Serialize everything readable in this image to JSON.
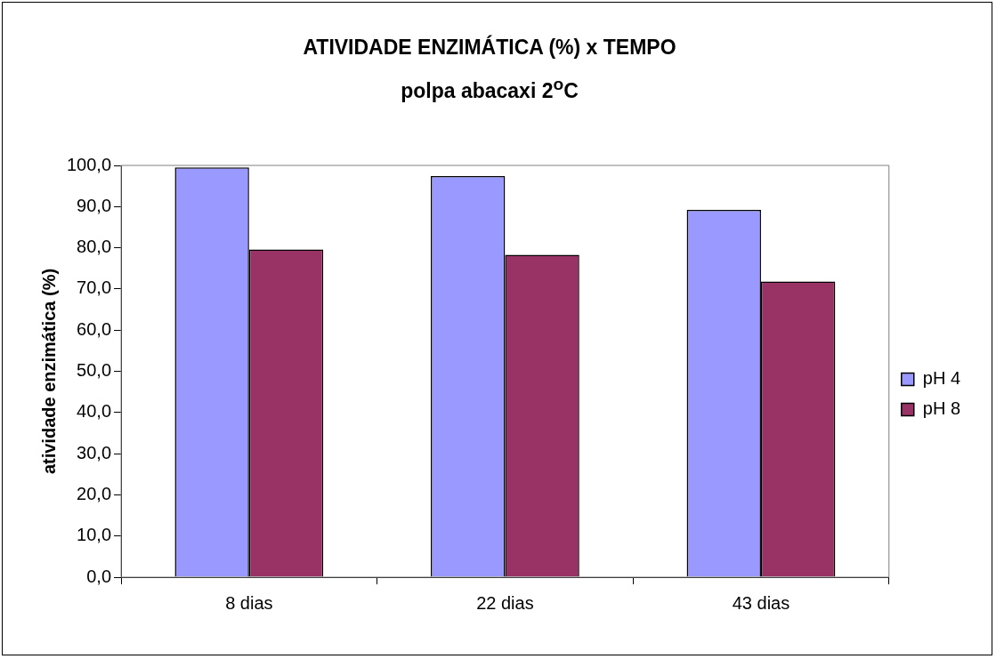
{
  "chart_data": {
    "type": "bar",
    "title": "ATIVIDADE ENZIMÁTICA (%) x TEMPO",
    "subtitle": "polpa abacaxi 2$^{o}$C",
    "ylabel": "atividade enzimática (%)",
    "categories": [
      "8 dias",
      "22 dias",
      "43 dias"
    ],
    "series": [
      {
        "name": "pH 4",
        "color": "#9999ff",
        "values": [
          99.5,
          97.4,
          89.2
        ]
      },
      {
        "name": "pH 8",
        "color": "#993366",
        "values": [
          79.6,
          78.3,
          71.8
        ]
      }
    ],
    "ylim": [
      0,
      100
    ],
    "yticks": [
      {
        "value": 0,
        "label": "0,0"
      },
      {
        "value": 10,
        "label": "10,0"
      },
      {
        "value": 20,
        "label": "20,0"
      },
      {
        "value": 30,
        "label": "30,0"
      },
      {
        "value": 40,
        "label": "40,0"
      },
      {
        "value": 50,
        "label": "50,0"
      },
      {
        "value": 60,
        "label": "60,0"
      },
      {
        "value": 70,
        "label": "70,0"
      },
      {
        "value": 80,
        "label": "80,0"
      },
      {
        "value": 90,
        "label": "90,0"
      },
      {
        "value": 100,
        "label": "100,0"
      }
    ],
    "grid": false,
    "legend": "right"
  }
}
